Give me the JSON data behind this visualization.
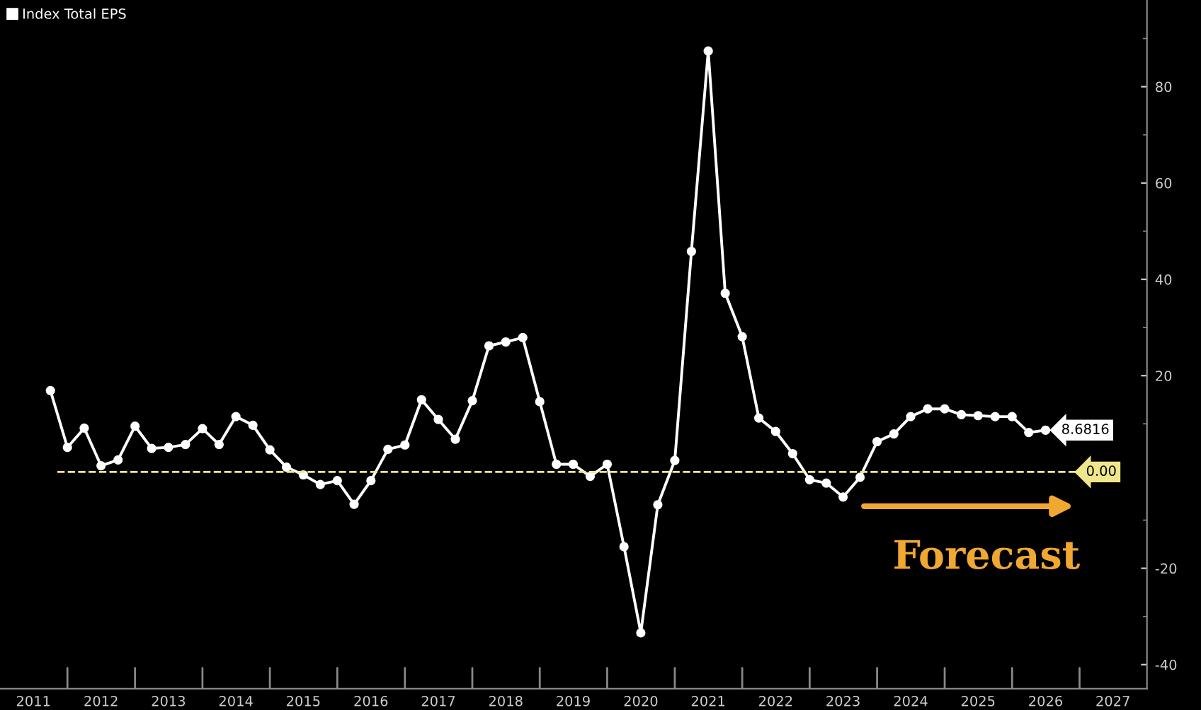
{
  "chart_data": {
    "type": "line",
    "legend": "top left",
    "marker": "circle",
    "line_style": "solid",
    "grid": false,
    "x": [
      "2011-10",
      "2012-01",
      "2012-04",
      "2012-07",
      "2012-10",
      "2013-01",
      "2013-04",
      "2013-07",
      "2013-10",
      "2014-01",
      "2014-04",
      "2014-07",
      "2014-10",
      "2015-01",
      "2015-04",
      "2015-07",
      "2015-10",
      "2016-01",
      "2016-04",
      "2016-07",
      "2016-10",
      "2017-01",
      "2017-04",
      "2017-07",
      "2017-10",
      "2018-01",
      "2018-04",
      "2018-07",
      "2018-10",
      "2019-01",
      "2019-04",
      "2019-07",
      "2019-10",
      "2020-01",
      "2020-04",
      "2020-07",
      "2020-10",
      "2021-01",
      "2021-04",
      "2021-07",
      "2021-10",
      "2022-01",
      "2022-04",
      "2022-07",
      "2022-10",
      "2023-01",
      "2023-04",
      "2023-07",
      "2023-10",
      "2024-01",
      "2024-04",
      "2024-07",
      "2024-10",
      "2025-01",
      "2025-04",
      "2025-07",
      "2025-10",
      "2026-01",
      "2026-04",
      "2026-07"
    ],
    "series": [
      {
        "name": "Index Total EPS",
        "color": "#ffffff",
        "values": [
          16.9,
          5.1,
          9.1,
          1.3,
          2.5,
          9.5,
          4.9,
          5.1,
          5.7,
          9.0,
          5.7,
          11.5,
          9.7,
          4.6,
          1.0,
          -0.6,
          -2.6,
          -1.8,
          -6.7,
          -1.8,
          4.7,
          5.6,
          15.0,
          10.9,
          6.8,
          14.8,
          26.2,
          27.0,
          27.9,
          14.6,
          1.6,
          1.6,
          -0.9,
          1.6,
          -15.5,
          -33.4,
          -6.8,
          2.4,
          45.8,
          87.4,
          37.1,
          28.1,
          11.2,
          8.4,
          3.8,
          -1.6,
          -2.3,
          -5.2,
          -1.1,
          6.3,
          7.9,
          11.5,
          13.1,
          13.1,
          11.9,
          11.7,
          11.5,
          11.5,
          8.2,
          8.6816
        ],
        "value_labels": [
          null,
          null,
          null,
          null,
          null,
          null,
          null,
          null,
          null,
          null,
          null,
          null,
          null,
          null,
          null,
          null,
          null,
          null,
          null,
          null,
          null,
          null,
          null,
          null,
          null,
          null,
          null,
          null,
          null,
          null,
          null,
          null,
          null,
          null,
          null,
          null,
          null,
          null,
          null,
          null,
          null,
          null,
          null,
          null,
          null,
          null,
          null,
          null,
          null,
          null,
          null,
          null,
          null,
          null,
          null,
          null,
          null,
          null,
          null,
          "8.6816"
        ]
      }
    ],
    "ref_lines": [
      {
        "axis": "y",
        "value": 0,
        "label": "0.00",
        "color": "#f0e68c",
        "line_style": "dashed"
      }
    ],
    "annotations": [
      "Forecast"
    ],
    "xlim": [
      "2011-01",
      "2028-01"
    ],
    "xticks": [
      {
        "value": "2011-07",
        "label": "2011"
      },
      {
        "value": "2012-07",
        "label": "2012"
      },
      {
        "value": "2013-07",
        "label": "2013"
      },
      {
        "value": "2014-07",
        "label": "2014"
      },
      {
        "value": "2015-07",
        "label": "2015"
      },
      {
        "value": "2016-07",
        "label": "2016"
      },
      {
        "value": "2017-07",
        "label": "2017"
      },
      {
        "value": "2018-07",
        "label": "2018"
      },
      {
        "value": "2019-07",
        "label": "2019"
      },
      {
        "value": "2020-07",
        "label": "2020"
      },
      {
        "value": "2021-07",
        "label": "2021"
      },
      {
        "value": "2022-07",
        "label": "2022"
      },
      {
        "value": "2023-07",
        "label": "2023"
      },
      {
        "value": "2024-07",
        "label": "2024"
      },
      {
        "value": "2025-07",
        "label": "2025"
      },
      {
        "value": "2026-07",
        "label": "2026"
      },
      {
        "value": "2027-07",
        "label": "2027"
      },
      {
        "value": "2012-01",
        "label": null
      },
      {
        "value": "2013-01",
        "label": null
      },
      {
        "value": "2014-01",
        "label": null
      },
      {
        "value": "2015-01",
        "label": null
      },
      {
        "value": "2016-01",
        "label": null
      },
      {
        "value": "2017-01",
        "label": null
      },
      {
        "value": "2018-01",
        "label": null
      },
      {
        "value": "2019-01",
        "label": null
      },
      {
        "value": "2020-01",
        "label": null
      },
      {
        "value": "2021-01",
        "label": null
      },
      {
        "value": "2022-01",
        "label": null
      },
      {
        "value": "2023-01",
        "label": null
      },
      {
        "value": "2024-01",
        "label": null
      },
      {
        "value": "2025-01",
        "label": null
      },
      {
        "value": "2026-01",
        "label": null
      },
      {
        "value": "2027-01",
        "label": null
      }
    ],
    "ylim": [
      -45,
      98
    ],
    "yticks": [
      -40,
      -20,
      20,
      40,
      60,
      80,
      {
        "value": -30,
        "label": null
      },
      {
        "value": -10,
        "label": null
      },
      {
        "value": 10,
        "label": null
      },
      {
        "value": 30,
        "label": null
      },
      {
        "value": 50,
        "label": null
      },
      {
        "value": 70,
        "label": null
      },
      {
        "value": 90,
        "label": null
      }
    ]
  }
}
